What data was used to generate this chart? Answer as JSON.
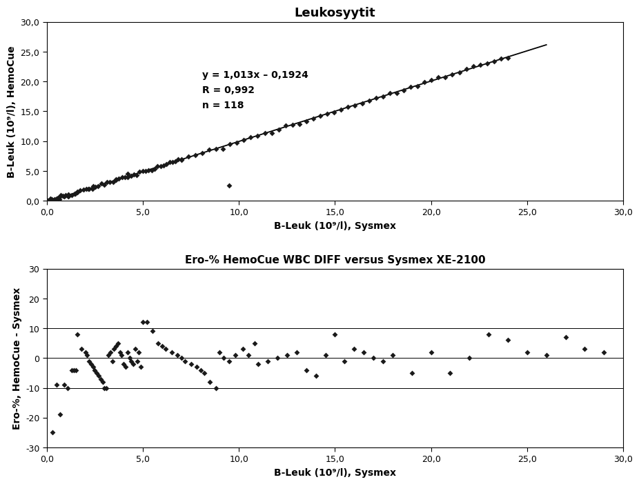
{
  "chart1_title": "Leukosyytit",
  "chart1_xlabel": "B-Leuk (10⁹/l), Sysmex",
  "chart1_ylabel": "B-Leuk (10⁹/l), HemoCue",
  "chart1_equation": "y = 1,013x – 0,1924",
  "chart1_R": "R = 0,992",
  "chart1_n": "n = 118",
  "chart1_xlim": [
    0.0,
    30.0
  ],
  "chart1_ylim": [
    0.0,
    30.0
  ],
  "chart1_xticks": [
    0.0,
    5.0,
    10.0,
    15.0,
    20.0,
    25.0,
    30.0
  ],
  "chart1_yticks": [
    0.0,
    5.0,
    10.0,
    15.0,
    20.0,
    25.0,
    30.0
  ],
  "chart2_title": "Ero-% HemoCue WBC DIFF versus Sysmex XE-2100",
  "chart2_xlabel": "B-Leuk (10⁹/l), Sysmex",
  "chart2_ylabel": "Ero-%, HemoCue - Sysmex",
  "chart2_xlim": [
    0.0,
    30.0
  ],
  "chart2_ylim": [
    -30.0,
    30.0
  ],
  "chart2_xticks": [
    0.0,
    5.0,
    10.0,
    15.0,
    20.0,
    25.0,
    30.0
  ],
  "chart2_yticks": [
    -30,
    -20,
    -10,
    0,
    10,
    20,
    30
  ],
  "scatter_color": "#1a1a1a",
  "line_color": "#000000",
  "bg_color": "#ffffff",
  "marker_style": "D",
  "marker_size": 4.0,
  "font_color": "#000000",
  "chart2_x": [
    0.3,
    0.5,
    0.7,
    0.9,
    1.1,
    1.3,
    1.4,
    1.5,
    1.6,
    1.8,
    2.0,
    2.1,
    2.2,
    2.3,
    2.4,
    2.5,
    2.6,
    2.7,
    2.8,
    2.9,
    3.0,
    3.1,
    3.2,
    3.3,
    3.4,
    3.5,
    3.6,
    3.7,
    3.8,
    3.9,
    4.0,
    4.1,
    4.2,
    4.3,
    4.4,
    4.5,
    4.6,
    4.7,
    4.8,
    4.9,
    5.0,
    5.2,
    5.5,
    5.8,
    6.0,
    6.2,
    6.5,
    6.8,
    7.0,
    7.2,
    7.5,
    7.8,
    8.0,
    8.2,
    8.5,
    8.8,
    9.0,
    9.2,
    9.5,
    9.8,
    10.2,
    10.5,
    10.8,
    11.0,
    11.5,
    12.0,
    12.5,
    13.0,
    13.5,
    14.0,
    14.5,
    15.0,
    15.5,
    16.0,
    16.5,
    17.0,
    17.5,
    18.0,
    19.0,
    20.0,
    21.0,
    22.0,
    23.0,
    24.0,
    25.0,
    26.0,
    27.0,
    28.0,
    29.0
  ],
  "chart2_y": [
    -25,
    -9,
    -19,
    -9,
    -10,
    -4,
    -4,
    -4,
    8,
    3,
    2,
    1,
    -1,
    -2,
    -3,
    -4,
    -5,
    -6,
    -7,
    -8,
    -10,
    -10,
    1,
    2,
    -1,
    3,
    4,
    5,
    2,
    1,
    -2,
    -3,
    2,
    0,
    -1,
    -2,
    3,
    -1,
    2,
    -3,
    12,
    12,
    9,
    5,
    4,
    3,
    2,
    1,
    0,
    -1,
    -2,
    -3,
    -4,
    -5,
    -8,
    -10,
    2,
    0,
    -1,
    1,
    3,
    1,
    5,
    -2,
    -1,
    0,
    1,
    2,
    -4,
    -6,
    1,
    8,
    -1,
    3,
    2,
    0,
    -1,
    1,
    -5,
    2,
    -5,
    0,
    8,
    6,
    2,
    1,
    7,
    3,
    2
  ]
}
